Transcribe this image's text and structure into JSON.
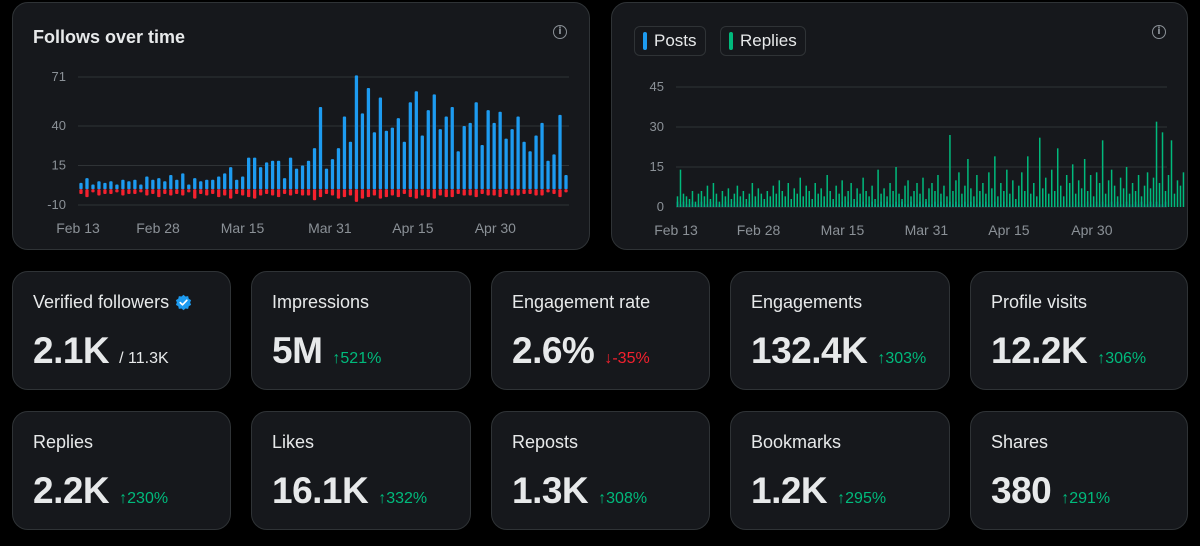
{
  "follows_chart": {
    "title": "Follows over time",
    "info_icon": "info-icon",
    "chart_data": {
      "type": "bar",
      "title": "Follows over time",
      "ylim": [
        -10,
        71
      ],
      "yticks": [
        71,
        40,
        15,
        -10
      ],
      "xticks": [
        "Feb 13",
        "Feb 28",
        "Mar 15",
        "Mar 31",
        "Apr 15",
        "Apr 30"
      ],
      "grid": true,
      "series": [
        {
          "color": "#1d9bf0",
          "values": [
            4,
            7,
            3,
            5,
            4,
            5,
            3,
            6,
            5,
            6,
            3,
            8,
            6,
            7,
            5,
            9,
            6,
            10,
            3,
            7,
            5,
            6,
            6,
            8,
            10,
            14,
            6,
            8,
            20,
            20,
            14,
            17,
            18,
            18,
            7,
            20,
            13,
            15,
            18,
            26,
            52,
            13,
            19,
            26,
            46,
            30,
            72,
            48,
            64,
            36,
            58,
            37,
            39,
            45,
            30,
            55,
            62,
            34,
            50,
            60,
            38,
            46,
            52,
            24,
            40,
            42,
            55,
            28,
            50,
            42,
            49,
            32,
            38,
            46,
            30,
            24,
            34,
            42,
            18,
            22,
            47,
            9
          ]
        },
        {
          "color": "#f4212e",
          "values": [
            -3,
            -5,
            -2,
            -4,
            -3,
            -3,
            -2,
            -4,
            -3,
            -3,
            -2,
            -4,
            -3,
            -5,
            -3,
            -4,
            -3,
            -4,
            -2,
            -6,
            -3,
            -4,
            -3,
            -5,
            -4,
            -6,
            -3,
            -4,
            -5,
            -6,
            -4,
            -3,
            -4,
            -5,
            -3,
            -4,
            -3,
            -4,
            -4,
            -7,
            -5,
            -3,
            -4,
            -6,
            -5,
            -4,
            -8,
            -6,
            -5,
            -4,
            -6,
            -5,
            -4,
            -5,
            -3,
            -5,
            -6,
            -4,
            -5,
            -6,
            -4,
            -5,
            -5,
            -3,
            -4,
            -4,
            -5,
            -3,
            -4,
            -4,
            -5,
            -3,
            -4,
            -4,
            -3,
            -3,
            -4,
            -4,
            -2,
            -3,
            -5,
            -2
          ]
        }
      ]
    }
  },
  "posts_chart": {
    "info_icon": "info-icon",
    "legend": [
      {
        "label": "Posts",
        "color": "#1d9bf0"
      },
      {
        "label": "Replies",
        "color": "#00ba7c"
      }
    ],
    "chart_data": {
      "type": "bar",
      "ylim": [
        0,
        45
      ],
      "yticks": [
        45,
        30,
        15,
        0
      ],
      "xticks": [
        "Feb 13",
        "Feb 28",
        "Mar 15",
        "Mar 31",
        "Apr 15",
        "Apr 30"
      ],
      "grid": true,
      "series": [
        {
          "name": "Posts",
          "color": "#1d9bf0",
          "values": [
            2,
            1,
            2,
            1,
            1,
            2,
            1,
            1,
            2,
            1,
            1,
            2,
            1,
            2,
            1,
            1,
            2,
            1,
            1,
            2,
            1,
            2,
            1,
            1,
            2,
            1,
            2,
            1,
            1,
            2,
            1,
            2,
            1,
            1,
            2,
            1,
            2,
            1,
            1,
            2,
            1,
            1,
            2,
            1,
            2,
            1,
            1,
            2,
            1,
            2,
            1,
            1,
            2,
            1,
            1,
            2,
            1,
            2,
            1,
            1,
            2,
            1,
            2,
            1,
            1,
            2,
            1,
            1,
            2,
            1,
            2,
            1,
            1,
            2,
            1,
            2,
            1,
            1,
            2,
            1,
            1,
            2,
            1,
            2,
            1,
            1,
            2,
            1,
            2,
            1,
            1,
            2,
            1,
            2,
            1,
            1,
            2,
            1,
            2,
            1,
            1,
            2,
            1,
            2,
            1,
            1,
            2,
            1,
            1,
            2,
            1,
            2,
            1,
            1,
            2,
            1,
            2,
            1,
            1,
            2,
            1,
            2,
            1,
            1,
            2,
            1,
            1,
            2,
            1,
            2,
            1,
            1,
            2,
            1,
            2,
            1,
            1,
            2,
            1,
            1,
            2,
            1,
            2,
            1,
            1,
            2,
            1,
            2,
            1,
            1,
            2,
            1,
            1,
            2,
            1,
            2,
            1,
            1,
            2,
            1,
            2,
            1,
            1,
            2
          ]
        },
        {
          "name": "Replies",
          "color": "#00ba7c",
          "values": [
            4,
            14,
            5,
            4,
            3,
            6,
            2,
            5,
            6,
            4,
            8,
            3,
            9,
            5,
            2,
            6,
            4,
            7,
            3,
            5,
            8,
            4,
            6,
            3,
            5,
            9,
            4,
            7,
            5,
            3,
            6,
            4,
            8,
            5,
            10,
            6,
            4,
            9,
            3,
            7,
            5,
            11,
            4,
            8,
            6,
            3,
            9,
            5,
            7,
            4,
            12,
            6,
            3,
            8,
            5,
            10,
            4,
            6,
            9,
            3,
            7,
            5,
            11,
            6,
            4,
            8,
            3,
            14,
            5,
            7,
            4,
            9,
            6,
            15,
            5,
            3,
            8,
            10,
            4,
            6,
            9,
            5,
            11,
            3,
            7,
            9,
            6,
            12,
            5,
            8,
            4,
            27,
            6,
            10,
            13,
            5,
            8,
            18,
            7,
            4,
            12,
            6,
            9,
            5,
            13,
            7,
            19,
            4,
            9,
            6,
            14,
            5,
            10,
            3,
            8,
            13,
            6,
            19,
            5,
            9,
            4,
            26,
            7,
            11,
            5,
            14,
            6,
            22,
            8,
            4,
            12,
            9,
            16,
            5,
            10,
            7,
            18,
            6,
            12,
            4,
            13,
            9,
            25,
            5,
            10,
            14,
            8,
            4,
            11,
            7,
            15,
            5,
            9,
            6,
            12,
            4,
            8,
            13,
            7,
            11,
            32,
            9,
            28,
            6,
            12,
            25,
            5,
            10,
            8,
            13
          ]
        }
      ]
    }
  },
  "stats": [
    {
      "label": "Verified followers",
      "value": "2.1K",
      "total": "/ 11.3K",
      "verified": true
    },
    {
      "label": "Impressions",
      "value": "5M",
      "direction": "up",
      "change": "521%"
    },
    {
      "label": "Engagement rate",
      "value": "2.6%",
      "direction": "down",
      "change": "-35%"
    },
    {
      "label": "Engagements",
      "value": "132.4K",
      "direction": "up",
      "change": "303%"
    },
    {
      "label": "Profile visits",
      "value": "12.2K",
      "direction": "up",
      "change": "306%"
    },
    {
      "label": "Replies",
      "value": "2.2K",
      "direction": "up",
      "change": "230%"
    },
    {
      "label": "Likes",
      "value": "16.1K",
      "direction": "up",
      "change": "332%"
    },
    {
      "label": "Reposts",
      "value": "1.3K",
      "direction": "up",
      "change": "308%"
    },
    {
      "label": "Bookmarks",
      "value": "1.2K",
      "direction": "up",
      "change": "295%"
    },
    {
      "label": "Shares",
      "value": "380",
      "direction": "up",
      "change": "291%"
    }
  ]
}
